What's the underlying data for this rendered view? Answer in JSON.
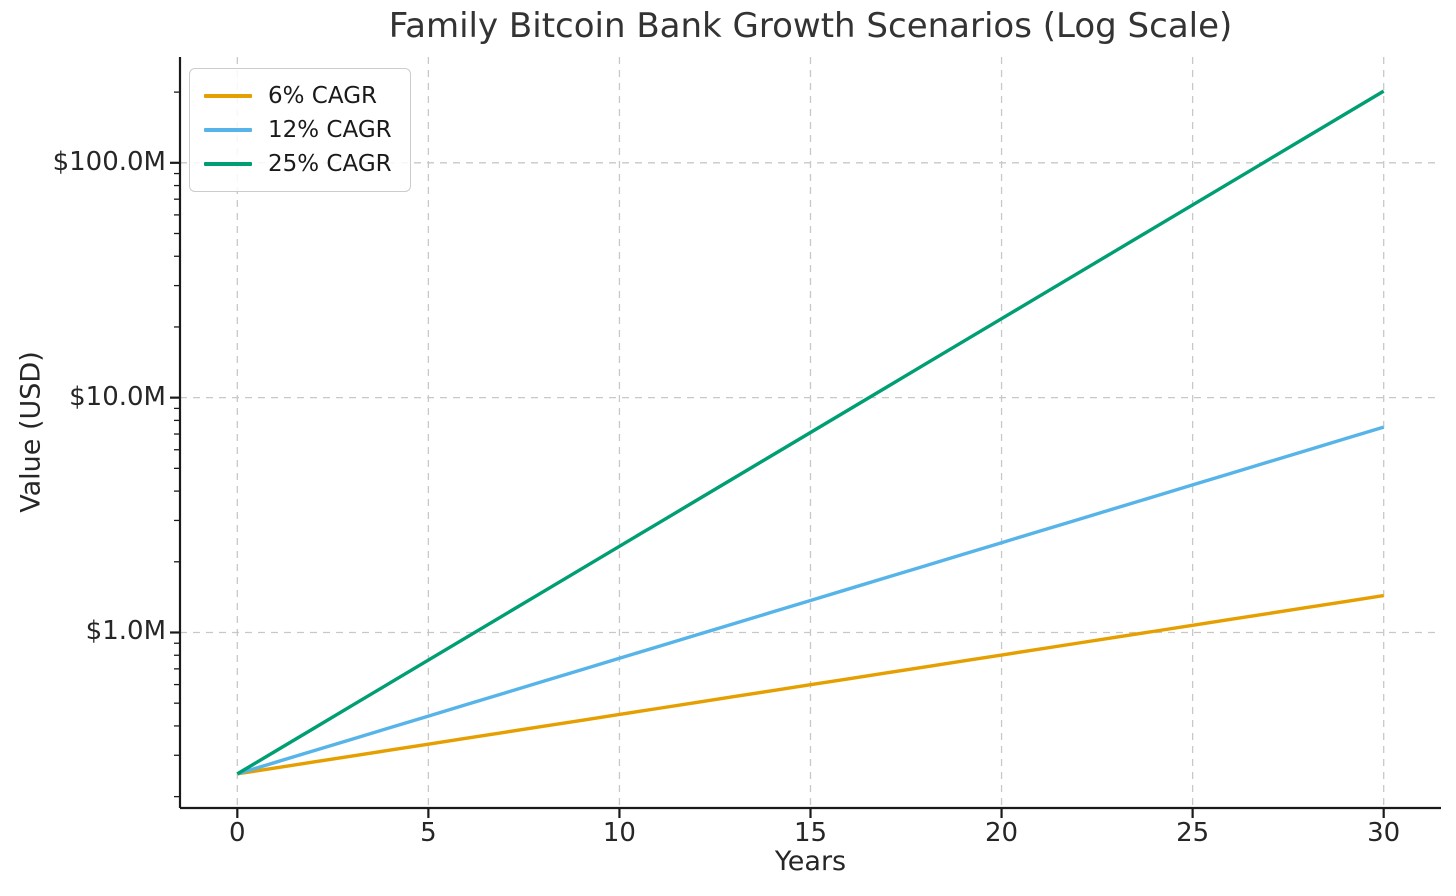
{
  "chart_data": {
    "type": "line",
    "title": "Family Bitcoin Bank Growth Scenarios (Log Scale)",
    "xlabel": "Years",
    "ylabel": "Value (USD)",
    "yscale": "log",
    "grid": {
      "show": true,
      "style": "dashed",
      "color": "#c8c8c8"
    },
    "legend": {
      "position": "upper left",
      "entries": [
        "6% CAGR",
        "12% CAGR",
        "25% CAGR"
      ]
    },
    "starting_value_usd": 250000,
    "xlim": [
      -1.5,
      31.5
    ],
    "ylim": [
      178900,
      282200000
    ],
    "x_ticks": [
      0,
      5,
      10,
      15,
      20,
      25,
      30
    ],
    "y_ticks": [
      {
        "value": 1000000,
        "label": "$1.0M"
      },
      {
        "value": 10000000,
        "label": "$10.0M"
      },
      {
        "value": 100000000,
        "label": "$100.0M"
      }
    ],
    "x": [
      0,
      1,
      2,
      3,
      4,
      5,
      6,
      7,
      8,
      9,
      10,
      11,
      12,
      13,
      14,
      15,
      16,
      17,
      18,
      19,
      20,
      21,
      22,
      23,
      24,
      25,
      26,
      27,
      28,
      29,
      30
    ],
    "series": [
      {
        "name": "6% CAGR",
        "cagr_percent": 6,
        "color": "#E69F00",
        "values": [
          250000,
          265000,
          280900,
          297754,
          315619,
          334556,
          354630,
          375908,
          398462,
          422370,
          447712,
          474575,
          503049,
          533232,
          565226,
          599139,
          635088,
          673193,
          713585,
          756400,
          801784,
          849891,
          900884,
          954937,
          1012234,
          1072968,
          1137346,
          1205586,
          1277921,
          1354597,
          1435873
        ]
      },
      {
        "name": "12% CAGR",
        "cagr_percent": 12,
        "color": "#56B4E9",
        "values": [
          250000,
          280000,
          313600,
          351232,
          393380,
          440585,
          493456,
          552670,
          618991,
          693270,
          776462,
          869638,
          973994,
          1090873,
          1221778,
          1368391,
          1532598,
          1716510,
          1922491,
          2153190,
          2411573,
          2700962,
          3025077,
          3388087,
          3794657,
          4250016,
          4760018,
          5331220,
          5970966,
          6687482,
          7489980
        ]
      },
      {
        "name": "25% CAGR",
        "cagr_percent": 25,
        "color": "#009E73",
        "values": [
          250000,
          312500,
          390625,
          488281,
          610352,
          762939,
          953674,
          1192093,
          1490116,
          1862645,
          2328306,
          2910383,
          3637979,
          4547474,
          5684342,
          7105427,
          8881784,
          11102230,
          13877788,
          17347235,
          21684043,
          27105054,
          33881318,
          42351647,
          52939559,
          66174449,
          82718061,
          103397577,
          129246971,
          161558713,
          201948392
        ]
      }
    ]
  }
}
